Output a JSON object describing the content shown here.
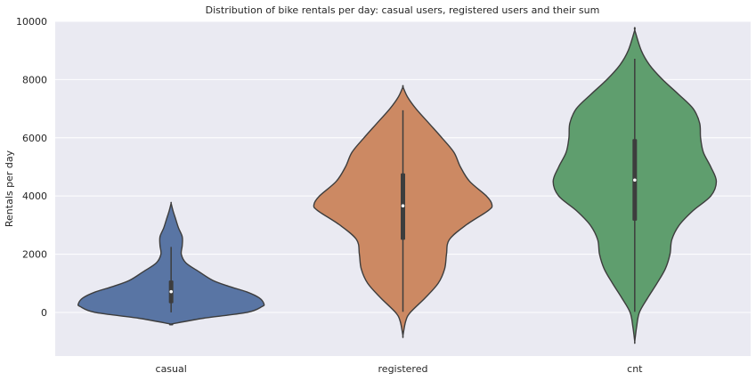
{
  "chart_data": {
    "type": "violin",
    "title": "Distribution of bike rentals per day: casual users, registered users and their sum",
    "xlabel": "",
    "ylabel": "Rentals per day",
    "categories": [
      "casual",
      "registered",
      "cnt"
    ],
    "ylim": [
      -1500,
      10000
    ],
    "yticks": [
      0,
      2000,
      4000,
      6000,
      8000,
      10000
    ],
    "grid": true,
    "colors": [
      "#5975a4",
      "#cc8963",
      "#5f9e6e"
    ],
    "series": [
      {
        "category": "casual",
        "min": -400,
        "max": 3750,
        "whisker_low": 2,
        "q1": 316,
        "median": 713,
        "q3": 1096,
        "whisker_high": 2250,
        "density_y": [
          -400,
          -200,
          0,
          200,
          300,
          500,
          700,
          900,
          1100,
          1400,
          1700,
          2000,
          2300,
          2600,
          2900,
          3200,
          3500,
          3750
        ],
        "density_width": [
          0,
          0.35,
          0.82,
          0.98,
          1.0,
          0.95,
          0.82,
          0.62,
          0.45,
          0.3,
          0.16,
          0.11,
          0.12,
          0.12,
          0.08,
          0.05,
          0.02,
          0
        ]
      },
      {
        "category": "registered",
        "min": -800,
        "max": 7750,
        "whisker_low": 20,
        "q1": 2497,
        "median": 3662,
        "q3": 4776,
        "whisker_high": 6946,
        "density_y": [
          -800,
          -300,
          0,
          500,
          1000,
          1500,
          2000,
          2500,
          3000,
          3500,
          3700,
          4000,
          4500,
          5000,
          5500,
          6000,
          6500,
          7000,
          7400,
          7750
        ],
        "density_width": [
          0,
          0.03,
          0.08,
          0.24,
          0.38,
          0.45,
          0.47,
          0.5,
          0.68,
          0.92,
          0.96,
          0.9,
          0.72,
          0.62,
          0.55,
          0.42,
          0.28,
          0.14,
          0.05,
          0
        ]
      },
      {
        "category": "cnt",
        "min": -1000,
        "max": 9700,
        "whisker_low": 22,
        "q1": 3152,
        "median": 4548,
        "q3": 5956,
        "whisker_high": 8714,
        "density_y": [
          -1000,
          -500,
          0,
          500,
          1000,
          1500,
          2000,
          2500,
          3000,
          3500,
          4000,
          4500,
          5000,
          5500,
          6000,
          6500,
          7000,
          7500,
          8000,
          8500,
          9000,
          9700
        ],
        "density_width": [
          0,
          0.02,
          0.05,
          0.14,
          0.24,
          0.33,
          0.38,
          0.4,
          0.48,
          0.63,
          0.82,
          0.88,
          0.82,
          0.74,
          0.71,
          0.7,
          0.63,
          0.47,
          0.3,
          0.16,
          0.07,
          0
        ]
      }
    ]
  }
}
